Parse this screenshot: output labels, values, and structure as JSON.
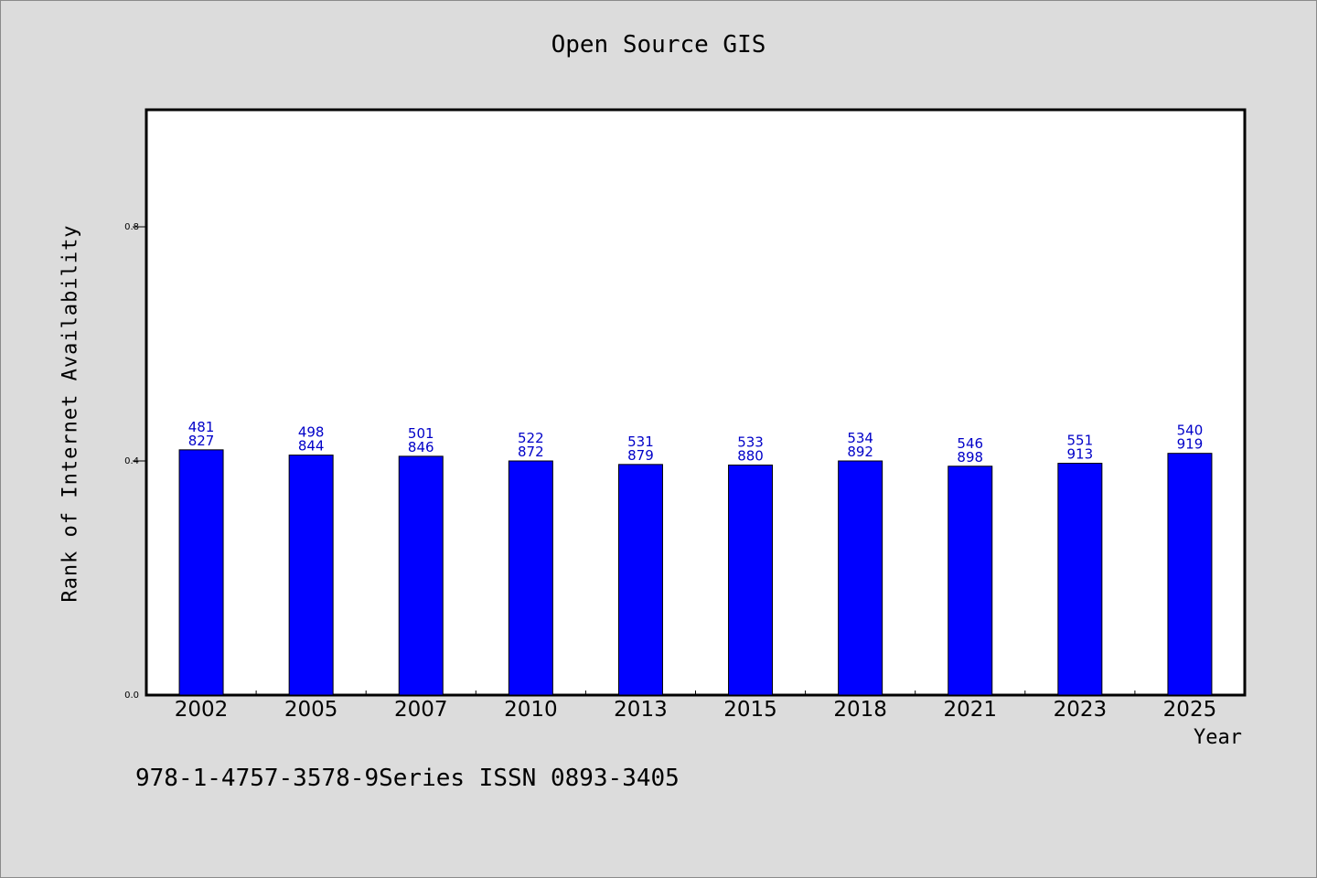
{
  "chart_data": {
    "type": "bar",
    "title": "Open Source GIS",
    "xlabel": "Year",
    "ylabel": "Rank of Internet Availability",
    "categories": [
      "2002",
      "2005",
      "2007",
      "2010",
      "2013",
      "2015",
      "2018",
      "2021",
      "2023",
      "2025"
    ],
    "values": [
      0.419,
      0.41,
      0.408,
      0.4,
      0.394,
      0.393,
      0.4,
      0.391,
      0.396,
      0.413
    ],
    "bar_labels": [
      [
        "481",
        "827"
      ],
      [
        "498",
        "844"
      ],
      [
        "501",
        "846"
      ],
      [
        "522",
        "872"
      ],
      [
        "531",
        "879"
      ],
      [
        "533",
        "880"
      ],
      [
        "534",
        "892"
      ],
      [
        "546",
        "898"
      ],
      [
        "551",
        "913"
      ],
      [
        "540",
        "919"
      ]
    ],
    "y_ticks": [
      "0.0",
      "0.4",
      "0.8"
    ],
    "ylim": [
      0,
      1.0
    ],
    "grid": false,
    "legend": "none",
    "colors": {
      "bar_fill": "#0000ff",
      "bar_stroke": "#000000",
      "data_label": "#0000c8",
      "plot_background": "#ffffff",
      "page_background": "#dcdcdc"
    }
  },
  "footer_note": "978-1-4757-3578-9Series ISSN 0893-3405"
}
